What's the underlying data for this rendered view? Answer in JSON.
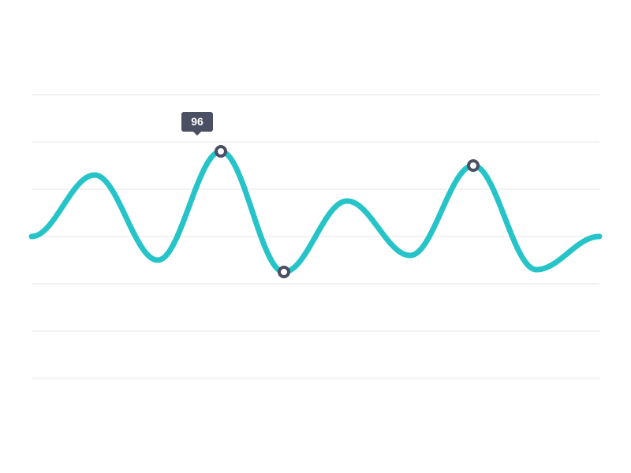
{
  "chart_data": {
    "type": "line",
    "title": "",
    "xlabel": "",
    "ylabel": "",
    "grid": true,
    "grid_lines": 7,
    "ylim": [
      0,
      120
    ],
    "x": [
      0,
      1,
      2,
      3,
      4,
      5,
      6,
      7,
      8,
      9
    ],
    "series": [
      {
        "values": [
          60,
          86,
          50,
          96,
          45,
          75,
          52,
          90,
          46,
          60
        ]
      }
    ],
    "markers": [
      {
        "index": 3,
        "value": 96
      },
      {
        "index": 4,
        "value": 45
      },
      {
        "index": 7,
        "value": 90
      }
    ],
    "tooltip": {
      "index": 3,
      "label": "96"
    },
    "colors": {
      "line": "#26c4c8",
      "marker_stroke": "#4a4f63",
      "marker_fill": "#ffffff",
      "grid": "#e6e6e6",
      "tooltip_bg": "#4a4f63",
      "tooltip_text": "#ffffff"
    }
  }
}
